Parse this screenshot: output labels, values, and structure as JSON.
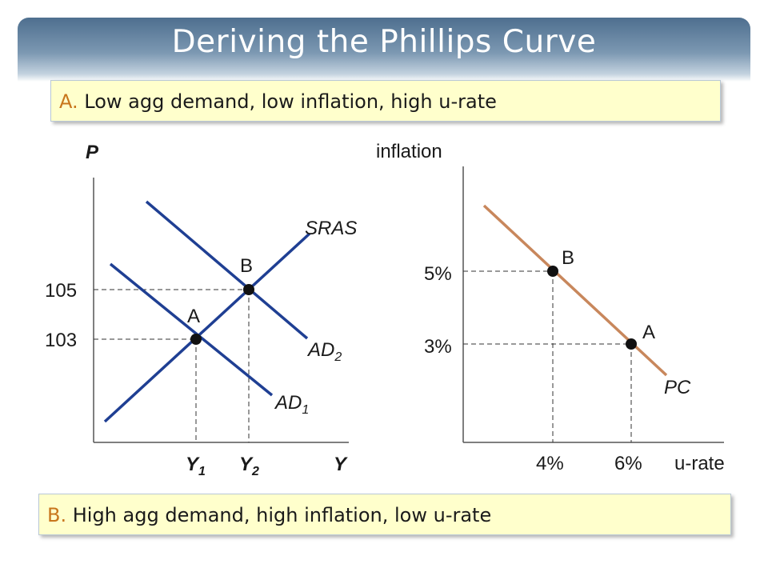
{
  "title": "Deriving the Phillips Curve",
  "callout_a": {
    "tag": "A.",
    "text": "Low agg demand, low inflation, high u-rate"
  },
  "callout_b": {
    "tag": "B.",
    "text": "High agg demand, high inflation, low u-rate"
  },
  "colors": {
    "ad_sras": "#1f3f93",
    "pc": "#c8875c",
    "callout_bg": "#ffffcc",
    "callout_tag": "#c8761c"
  },
  "chart_data": [
    {
      "type": "line",
      "title": "",
      "ylabel": "P",
      "xlabel": "Y",
      "y_ticks": [
        "103",
        "105"
      ],
      "x_ticks": [
        {
          "main": "Y",
          "sub": "1"
        },
        {
          "main": "Y",
          "sub": "2"
        }
      ],
      "series": [
        {
          "name": "SRAS",
          "label": "SRAS"
        },
        {
          "name": "AD1",
          "label_main": "AD",
          "label_sub": "1"
        },
        {
          "name": "AD2",
          "label_main": "AD",
          "label_sub": "2"
        }
      ],
      "points": [
        {
          "label": "A",
          "x": "Y1",
          "y": 103
        },
        {
          "label": "B",
          "x": "Y2",
          "y": 105
        }
      ]
    },
    {
      "type": "line",
      "title": "",
      "ylabel": "inflation",
      "xlabel": "u-rate",
      "y_ticks": [
        "3%",
        "5%"
      ],
      "x_ticks": [
        "4%",
        "6%"
      ],
      "series": [
        {
          "name": "PC",
          "label": "PC"
        }
      ],
      "points": [
        {
          "label": "B",
          "x": 4,
          "y": 5
        },
        {
          "label": "A",
          "x": 6,
          "y": 3
        }
      ]
    }
  ]
}
